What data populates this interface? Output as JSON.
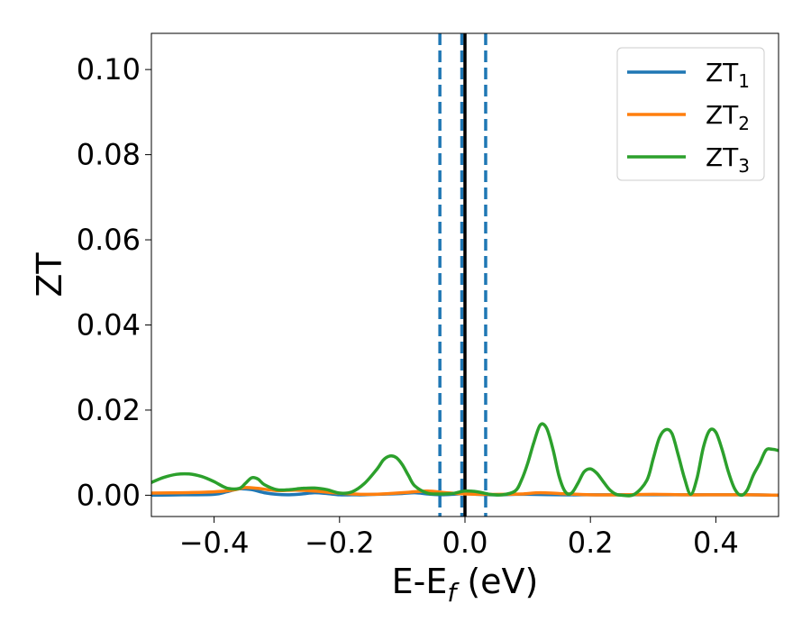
{
  "chart_data": {
    "type": "line",
    "title": "",
    "xlabel": {
      "main": "E-E",
      "sub": "f",
      "suffix": " (eV)"
    },
    "ylabel": "ZT",
    "xlim": [
      -0.5,
      0.5
    ],
    "ylim": [
      -0.005,
      0.1085
    ],
    "xticks": [
      -0.4,
      -0.2,
      0.0,
      0.2,
      0.4
    ],
    "xtick_labels": [
      "−0.4",
      "−0.2",
      "0.0",
      "0.2",
      "0.4"
    ],
    "yticks": [
      0.0,
      0.02,
      0.04,
      0.06,
      0.08,
      0.1
    ],
    "ytick_labels": [
      "0.00",
      "0.02",
      "0.04",
      "0.06",
      "0.08",
      "0.10"
    ],
    "grid": false,
    "legend_position": "top-right",
    "vlines": [
      {
        "x": -0.04,
        "style": "dashed",
        "color": "#1f77b4"
      },
      {
        "x": -0.005,
        "style": "dashed",
        "color": "#1f77b4"
      },
      {
        "x": 0.033,
        "style": "dashed",
        "color": "#1f77b4"
      },
      {
        "x": 0.0,
        "style": "solid",
        "color": "#000000"
      }
    ],
    "series": [
      {
        "name": "ZT",
        "sub": "1",
        "color": "#1f77b4",
        "x": [
          -0.5,
          -0.45,
          -0.4,
          -0.38,
          -0.36,
          -0.34,
          -0.32,
          -0.3,
          -0.28,
          -0.26,
          -0.24,
          -0.22,
          -0.2,
          -0.18,
          -0.16,
          -0.14,
          -0.12,
          -0.1,
          -0.08,
          -0.06,
          -0.04,
          -0.02,
          0.0,
          0.02,
          0.04,
          0.06,
          0.08,
          0.1,
          0.15,
          0.2,
          0.25,
          0.3,
          0.35,
          0.4,
          0.45,
          0.5
        ],
        "y": [
          0.0,
          0.0001,
          0.0002,
          0.0008,
          0.0015,
          0.0013,
          0.0006,
          0.0002,
          0.0001,
          0.0003,
          0.0006,
          0.0004,
          0.0001,
          0.0001,
          0.0001,
          0.0002,
          0.0003,
          0.0004,
          0.0006,
          0.0003,
          0.0001,
          0.0002,
          0.0004,
          0.0002,
          0.0001,
          0.0001,
          0.0002,
          0.0002,
          0.0001,
          0.0001,
          0.0001,
          0.0001,
          0.0001,
          0.0001,
          0.0001,
          0.0
        ]
      },
      {
        "name": "ZT",
        "sub": "2",
        "color": "#ff7f0e",
        "x": [
          -0.5,
          -0.45,
          -0.4,
          -0.37,
          -0.35,
          -0.33,
          -0.3,
          -0.27,
          -0.24,
          -0.21,
          -0.18,
          -0.15,
          -0.12,
          -0.09,
          -0.06,
          -0.03,
          0.0,
          0.03,
          0.06,
          0.09,
          0.12,
          0.15,
          0.2,
          0.25,
          0.3,
          0.35,
          0.4,
          0.45,
          0.5
        ],
        "y": [
          0.0005,
          0.0006,
          0.0008,
          0.0012,
          0.0018,
          0.0016,
          0.0011,
          0.0012,
          0.001,
          0.0006,
          0.0003,
          0.0002,
          0.0004,
          0.0007,
          0.001,
          0.0006,
          0.0003,
          0.0002,
          0.0002,
          0.0003,
          0.0006,
          0.0004,
          0.0001,
          0.0001,
          0.0002,
          0.0001,
          0.0001,
          0.0001,
          0.0
        ]
      },
      {
        "name": "ZT",
        "sub": "3",
        "color": "#2ca02c",
        "x": [
          -0.5,
          -0.48,
          -0.46,
          -0.44,
          -0.42,
          -0.4,
          -0.38,
          -0.36,
          -0.35,
          -0.34,
          -0.33,
          -0.32,
          -0.3,
          -0.28,
          -0.26,
          -0.24,
          -0.22,
          -0.2,
          -0.18,
          -0.16,
          -0.14,
          -0.13,
          -0.12,
          -0.11,
          -0.1,
          -0.09,
          -0.08,
          -0.06,
          -0.04,
          -0.02,
          0.0,
          0.02,
          0.04,
          0.06,
          0.08,
          0.09,
          0.1,
          0.11,
          0.12,
          0.13,
          0.14,
          0.15,
          0.16,
          0.17,
          0.18,
          0.19,
          0.2,
          0.21,
          0.22,
          0.23,
          0.24,
          0.25,
          0.27,
          0.29,
          0.3,
          0.31,
          0.32,
          0.33,
          0.34,
          0.35,
          0.36,
          0.37,
          0.38,
          0.39,
          0.4,
          0.41,
          0.42,
          0.43,
          0.44,
          0.45,
          0.46,
          0.47,
          0.48,
          0.49,
          0.5
        ],
        "y": [
          0.003,
          0.0042,
          0.0049,
          0.005,
          0.0044,
          0.0032,
          0.0017,
          0.0016,
          0.0028,
          0.0041,
          0.0038,
          0.0025,
          0.0013,
          0.0013,
          0.0016,
          0.0017,
          0.0013,
          0.0005,
          0.0008,
          0.0028,
          0.0062,
          0.0083,
          0.0092,
          0.0089,
          0.0072,
          0.0046,
          0.0022,
          0.0005,
          0.0003,
          0.0004,
          0.001,
          0.0008,
          0.0002,
          0.0001,
          0.001,
          0.0035,
          0.0075,
          0.0125,
          0.0165,
          0.0158,
          0.011,
          0.0045,
          0.0008,
          0.0005,
          0.0028,
          0.0055,
          0.0062,
          0.0052,
          0.0033,
          0.0014,
          0.0003,
          0.0,
          0.0002,
          0.0035,
          0.0085,
          0.0135,
          0.0154,
          0.0145,
          0.0095,
          0.004,
          0.0002,
          0.004,
          0.0112,
          0.0152,
          0.0148,
          0.0107,
          0.0055,
          0.0015,
          0.0,
          0.0012,
          0.0048,
          0.0075,
          0.0106,
          0.0108,
          0.0105
        ]
      }
    ]
  }
}
